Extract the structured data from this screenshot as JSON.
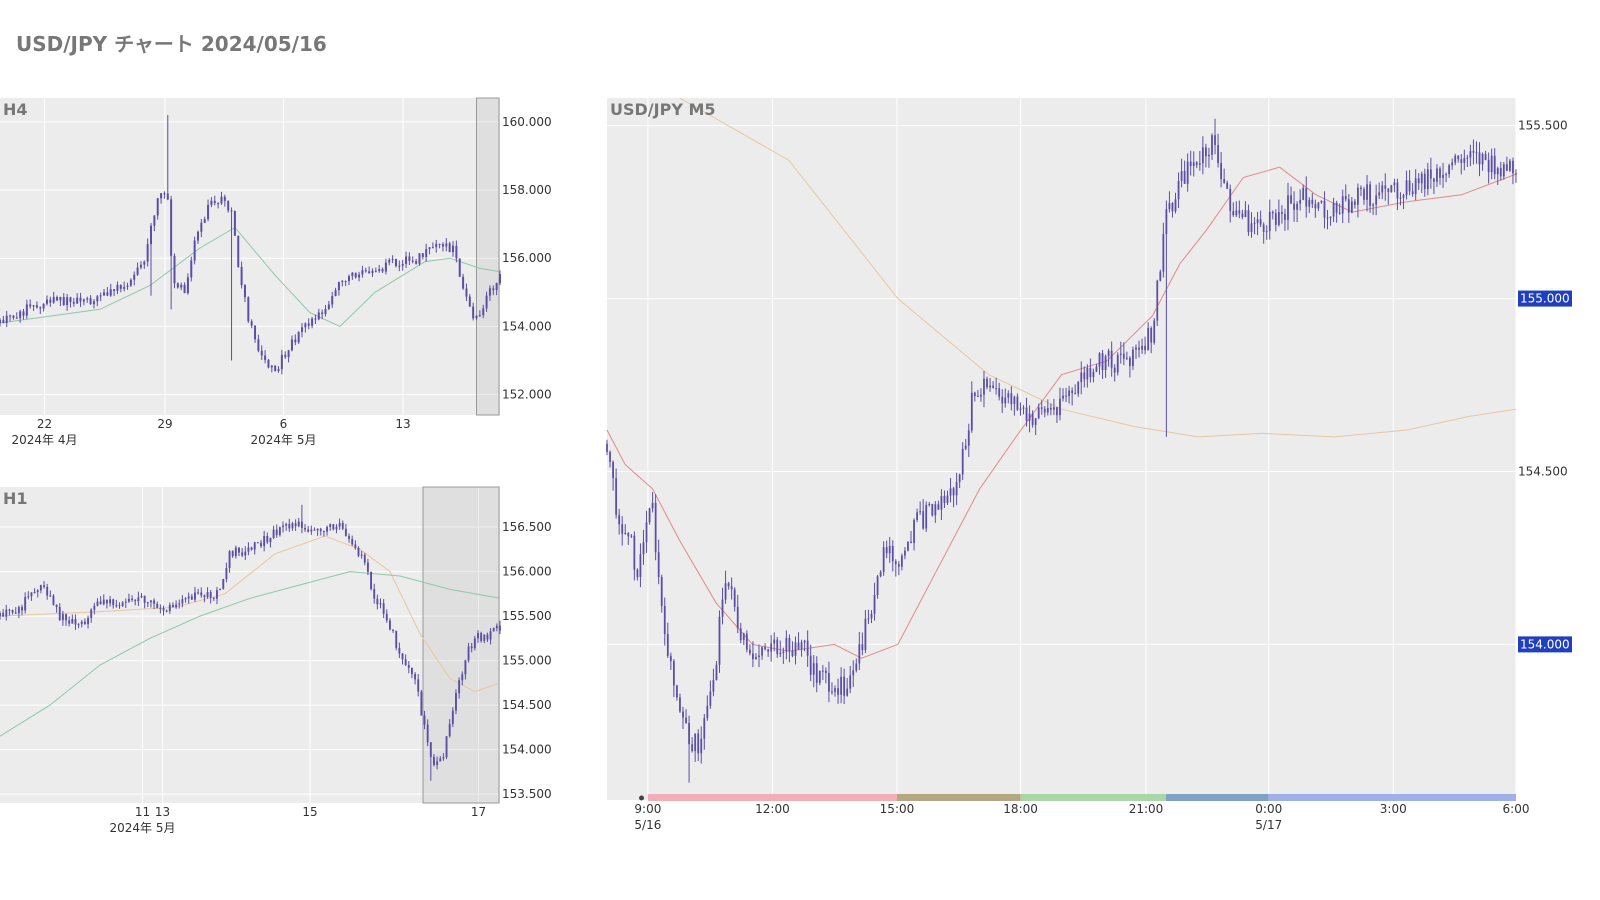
{
  "page": {
    "title": "USD/JPY チャート 2024/05/16"
  },
  "colors": {
    "candle": "#5b4ea6",
    "plot_bg": "#ececec",
    "grid": "#ffffff",
    "ma_short": "#e08a8a",
    "ma_mid": "#8fc7a8",
    "ma_long": "#e6c7a0",
    "badge": "#1f3fbf"
  },
  "chart_data": [
    {
      "id": "h4",
      "type": "candlestick",
      "title": "H4",
      "ylim": [
        151.4,
        160.7
      ],
      "y_ticks": [
        {
          "v": 152,
          "label": "152.000"
        },
        {
          "v": 154,
          "label": "154.000"
        },
        {
          "v": 156,
          "label": "156.000"
        },
        {
          "v": 158,
          "label": "158.000"
        },
        {
          "v": 160,
          "label": "160.000"
        }
      ],
      "x_ticks": [
        {
          "p": 0.089,
          "label": "22",
          "sub": "2024年 4月"
        },
        {
          "p": 0.33,
          "label": "29",
          "sub": ""
        },
        {
          "p": 0.567,
          "label": "6",
          "sub": "2024年 5月"
        },
        {
          "p": 0.806,
          "label": "13",
          "sub": ""
        }
      ],
      "highlight_x": [
        0.953,
        0.998
      ],
      "close_anchors": [
        {
          "p": 0.0,
          "c": 154.1
        },
        {
          "p": 0.05,
          "c": 154.5
        },
        {
          "p": 0.12,
          "c": 154.75
        },
        {
          "p": 0.2,
          "c": 154.8
        },
        {
          "p": 0.26,
          "c": 155.4
        },
        {
          "p": 0.29,
          "c": 156.0
        },
        {
          "p": 0.315,
          "c": 157.8
        },
        {
          "p": 0.335,
          "c": 158.0
        },
        {
          "p": 0.345,
          "c": 155.5
        },
        {
          "p": 0.37,
          "c": 155.0
        },
        {
          "p": 0.39,
          "c": 156.5
        },
        {
          "p": 0.42,
          "c": 157.6
        },
        {
          "p": 0.45,
          "c": 157.8
        },
        {
          "p": 0.465,
          "c": 157.2
        },
        {
          "p": 0.475,
          "c": 155.8
        },
        {
          "p": 0.5,
          "c": 154.0
        },
        {
          "p": 0.53,
          "c": 153.0
        },
        {
          "p": 0.55,
          "c": 152.6
        },
        {
          "p": 0.57,
          "c": 153.2
        },
        {
          "p": 0.6,
          "c": 153.9
        },
        {
          "p": 0.64,
          "c": 154.4
        },
        {
          "p": 0.68,
          "c": 155.3
        },
        {
          "p": 0.72,
          "c": 155.5
        },
        {
          "p": 0.78,
          "c": 155.8
        },
        {
          "p": 0.84,
          "c": 156.0
        },
        {
          "p": 0.88,
          "c": 156.4
        },
        {
          "p": 0.91,
          "c": 156.2
        },
        {
          "p": 0.93,
          "c": 154.9
        },
        {
          "p": 0.955,
          "c": 154.1
        },
        {
          "p": 0.975,
          "c": 155.0
        },
        {
          "p": 1.0,
          "c": 155.4
        }
      ],
      "spikes": [
        {
          "p": 0.338,
          "h": 160.2
        },
        {
          "p": 0.465,
          "l": 153.0
        },
        {
          "p": 0.05,
          "l": 154.2
        },
        {
          "p": 0.345,
          "l": 154.5
        },
        {
          "p": 0.3,
          "l": 154.9
        }
      ],
      "ma": [
        {
          "key": "ma_mid",
          "points": [
            [
              0,
              154.1
            ],
            [
              0.2,
              154.5
            ],
            [
              0.3,
              155.2
            ],
            [
              0.4,
              156.3
            ],
            [
              0.47,
              156.9
            ],
            [
              0.55,
              155.5
            ],
            [
              0.62,
              154.4
            ],
            [
              0.68,
              154.0
            ],
            [
              0.75,
              155.0
            ],
            [
              0.85,
              155.9
            ],
            [
              0.9,
              156.0
            ],
            [
              0.96,
              155.7
            ],
            [
              1.0,
              155.6
            ]
          ]
        }
      ]
    },
    {
      "id": "h1",
      "type": "candlestick",
      "title": "H1",
      "ylim": [
        153.4,
        156.95
      ],
      "y_ticks": [
        {
          "v": 153.5,
          "label": "153.500"
        },
        {
          "v": 154.0,
          "label": "154.000"
        },
        {
          "v": 154.5,
          "label": "154.500"
        },
        {
          "v": 155.0,
          "label": "155.000"
        },
        {
          "v": 155.5,
          "label": "155.500"
        },
        {
          "v": 156.0,
          "label": "156.000"
        },
        {
          "v": 156.5,
          "label": "156.500"
        }
      ],
      "x_ticks": [
        {
          "p": 0.285,
          "label": "11",
          "sub": "2024年 5月"
        },
        {
          "p": 0.325,
          "label": "13",
          "sub": ""
        },
        {
          "p": 0.62,
          "label": "15",
          "sub": ""
        },
        {
          "p": 0.957,
          "label": "17",
          "sub": ""
        }
      ],
      "highlight_x": [
        0.846,
        0.998
      ],
      "close_anchors": [
        {
          "p": 0.0,
          "c": 155.5
        },
        {
          "p": 0.04,
          "c": 155.6
        },
        {
          "p": 0.08,
          "c": 155.85
        },
        {
          "p": 0.12,
          "c": 155.5
        },
        {
          "p": 0.16,
          "c": 155.4
        },
        {
          "p": 0.2,
          "c": 155.65
        },
        {
          "p": 0.28,
          "c": 155.7
        },
        {
          "p": 0.34,
          "c": 155.6
        },
        {
          "p": 0.4,
          "c": 155.75
        },
        {
          "p": 0.44,
          "c": 155.75
        },
        {
          "p": 0.46,
          "c": 156.2
        },
        {
          "p": 0.52,
          "c": 156.3
        },
        {
          "p": 0.56,
          "c": 156.5
        },
        {
          "p": 0.6,
          "c": 156.55
        },
        {
          "p": 0.64,
          "c": 156.45
        },
        {
          "p": 0.68,
          "c": 156.5
        },
        {
          "p": 0.72,
          "c": 156.2
        },
        {
          "p": 0.75,
          "c": 155.7
        },
        {
          "p": 0.78,
          "c": 155.4
        },
        {
          "p": 0.8,
          "c": 155.0
        },
        {
          "p": 0.83,
          "c": 154.8
        },
        {
          "p": 0.85,
          "c": 154.2
        },
        {
          "p": 0.87,
          "c": 153.8
        },
        {
          "p": 0.89,
          "c": 154.0
        },
        {
          "p": 0.91,
          "c": 154.6
        },
        {
          "p": 0.93,
          "c": 155.0
        },
        {
          "p": 0.95,
          "c": 155.3
        },
        {
          "p": 0.97,
          "c": 155.25
        },
        {
          "p": 1.0,
          "c": 155.4
        }
      ],
      "spikes": [
        {
          "p": 0.605,
          "h": 156.75
        },
        {
          "p": 0.86,
          "l": 153.65
        }
      ],
      "ma": [
        {
          "key": "ma_long",
          "points": [
            [
              0,
              155.5
            ],
            [
              0.2,
              155.55
            ],
            [
              0.35,
              155.6
            ],
            [
              0.45,
              155.75
            ],
            [
              0.55,
              156.2
            ],
            [
              0.65,
              156.4
            ],
            [
              0.72,
              156.25
            ],
            [
              0.78,
              156.0
            ],
            [
              0.84,
              155.3
            ],
            [
              0.9,
              154.8
            ],
            [
              0.95,
              154.65
            ],
            [
              1.0,
              154.75
            ]
          ]
        },
        {
          "key": "ma_mid",
          "points": [
            [
              0,
              154.15
            ],
            [
              0.1,
              154.5
            ],
            [
              0.2,
              154.95
            ],
            [
              0.3,
              155.25
            ],
            [
              0.4,
              155.5
            ],
            [
              0.5,
              155.7
            ],
            [
              0.6,
              155.85
            ],
            [
              0.7,
              156.0
            ],
            [
              0.8,
              155.95
            ],
            [
              0.9,
              155.8
            ],
            [
              1.0,
              155.7
            ]
          ]
        }
      ]
    },
    {
      "id": "m5",
      "type": "candlestick",
      "title": "USD/JPY M5",
      "ylim": [
        153.55,
        155.58
      ],
      "y_ticks": [
        {
          "v": 154.0,
          "label": "154.000",
          "badge": true
        },
        {
          "v": 154.5,
          "label": "154.500"
        },
        {
          "v": 155.0,
          "label": "155.000",
          "badge": true
        },
        {
          "v": 155.5,
          "label": "155.500"
        }
      ],
      "x_ticks": [
        {
          "p": 0.045,
          "label": "9:00",
          "sub": "5/16"
        },
        {
          "p": 0.182,
          "label": "12:00",
          "sub": ""
        },
        {
          "p": 0.319,
          "label": "15:00",
          "sub": ""
        },
        {
          "p": 0.455,
          "label": "18:00",
          "sub": ""
        },
        {
          "p": 0.593,
          "label": "21:00",
          "sub": ""
        },
        {
          "p": 0.728,
          "label": "0:00",
          "sub": "5/17"
        },
        {
          "p": 0.865,
          "label": "3:00",
          "sub": ""
        },
        {
          "p": 1.0,
          "label": "6:00",
          "sub": ""
        }
      ],
      "close_anchors": [
        {
          "p": 0.0,
          "c": 154.58
        },
        {
          "p": 0.01,
          "c": 154.4
        },
        {
          "p": 0.025,
          "c": 154.3
        },
        {
          "p": 0.035,
          "c": 154.2
        },
        {
          "p": 0.048,
          "c": 154.45
        },
        {
          "p": 0.058,
          "c": 154.15
        },
        {
          "p": 0.07,
          "c": 153.95
        },
        {
          "p": 0.085,
          "c": 153.75
        },
        {
          "p": 0.1,
          "c": 153.7
        },
        {
          "p": 0.115,
          "c": 153.85
        },
        {
          "p": 0.13,
          "c": 154.2
        },
        {
          "p": 0.145,
          "c": 154.05
        },
        {
          "p": 0.165,
          "c": 153.95
        },
        {
          "p": 0.19,
          "c": 154.0
        },
        {
          "p": 0.215,
          "c": 154.0
        },
        {
          "p": 0.23,
          "c": 153.9
        },
        {
          "p": 0.26,
          "c": 153.88
        },
        {
          "p": 0.28,
          "c": 154.0
        },
        {
          "p": 0.305,
          "c": 154.28
        },
        {
          "p": 0.32,
          "c": 154.25
        },
        {
          "p": 0.34,
          "c": 154.35
        },
        {
          "p": 0.365,
          "c": 154.4
        },
        {
          "p": 0.385,
          "c": 154.45
        },
        {
          "p": 0.405,
          "c": 154.75
        },
        {
          "p": 0.425,
          "c": 154.75
        },
        {
          "p": 0.44,
          "c": 154.7
        },
        {
          "p": 0.47,
          "c": 154.65
        },
        {
          "p": 0.5,
          "c": 154.7
        },
        {
          "p": 0.54,
          "c": 154.82
        },
        {
          "p": 0.57,
          "c": 154.82
        },
        {
          "p": 0.6,
          "c": 154.9
        },
        {
          "p": 0.615,
          "c": 155.25
        },
        {
          "p": 0.635,
          "c": 155.35
        },
        {
          "p": 0.665,
          "c": 155.45
        },
        {
          "p": 0.69,
          "c": 155.25
        },
        {
          "p": 0.715,
          "c": 155.2
        },
        {
          "p": 0.74,
          "c": 155.25
        },
        {
          "p": 0.77,
          "c": 155.3
        },
        {
          "p": 0.8,
          "c": 155.25
        },
        {
          "p": 0.83,
          "c": 155.3
        },
        {
          "p": 0.88,
          "c": 155.32
        },
        {
          "p": 0.94,
          "c": 155.4
        },
        {
          "p": 1.0,
          "c": 155.38
        }
      ],
      "spikes": [
        {
          "p": 0.615,
          "l": 154.6
        },
        {
          "p": 0.67,
          "h": 155.52
        },
        {
          "p": 0.09,
          "l": 153.6
        }
      ],
      "ma": [
        {
          "key": "ma_short",
          "points": [
            [
              0,
              154.62
            ],
            [
              0.02,
              154.52
            ],
            [
              0.05,
              154.45
            ],
            [
              0.08,
              154.3
            ],
            [
              0.12,
              154.12
            ],
            [
              0.16,
              154.0
            ],
            [
              0.2,
              153.98
            ],
            [
              0.25,
              154.0
            ],
            [
              0.28,
              153.96
            ],
            [
              0.32,
              154.0
            ],
            [
              0.36,
              154.2
            ],
            [
              0.41,
              154.45
            ],
            [
              0.45,
              154.6
            ],
            [
              0.5,
              154.78
            ],
            [
              0.55,
              154.82
            ],
            [
              0.6,
              154.95
            ],
            [
              0.63,
              155.1
            ],
            [
              0.66,
              155.2
            ],
            [
              0.7,
              155.35
            ],
            [
              0.74,
              155.38
            ],
            [
              0.78,
              155.3
            ],
            [
              0.82,
              155.25
            ],
            [
              0.88,
              155.28
            ],
            [
              0.94,
              155.3
            ],
            [
              1.0,
              155.36
            ]
          ]
        },
        {
          "key": "ma_long",
          "points": [
            [
              0.08,
              155.58
            ],
            [
              0.2,
              155.4
            ],
            [
              0.32,
              155.0
            ],
            [
              0.42,
              154.78
            ],
            [
              0.5,
              154.68
            ],
            [
              0.58,
              154.63
            ],
            [
              0.65,
              154.6
            ],
            [
              0.72,
              154.61
            ],
            [
              0.8,
              154.6
            ],
            [
              0.88,
              154.62
            ],
            [
              0.95,
              154.66
            ],
            [
              1.0,
              154.68
            ]
          ]
        }
      ],
      "session_bar": [
        {
          "start": 0.045,
          "end": 0.319,
          "color": "#f2aeb4"
        },
        {
          "start": 0.319,
          "end": 0.455,
          "color": "#b4a782"
        },
        {
          "start": 0.455,
          "end": 0.615,
          "color": "#a9d6a7"
        },
        {
          "start": 0.615,
          "end": 0.728,
          "color": "#7fa1c4"
        },
        {
          "start": 0.728,
          "end": 1.0,
          "color": "#a0b0ea"
        }
      ]
    }
  ]
}
